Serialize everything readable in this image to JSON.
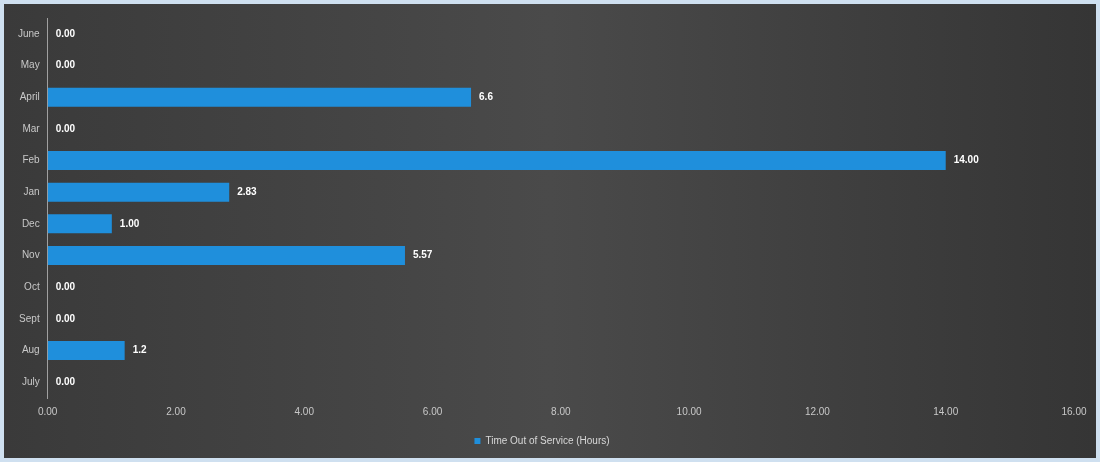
{
  "chart_data": {
    "type": "bar",
    "orientation": "horizontal",
    "categories": [
      "June",
      "May",
      "April",
      "Mar",
      "Feb",
      "Jan",
      "Dec",
      "Nov",
      "Oct",
      "Sept",
      "Aug",
      "July"
    ],
    "series": [
      {
        "name": "Time Out of Service (Hours)",
        "color": "#1f8fdc",
        "values": [
          0,
          0,
          6.6,
          0,
          14,
          2.83,
          1,
          5.57,
          0,
          0,
          1.2,
          0
        ],
        "value_labels": [
          "0.00",
          "0.00",
          "6.6",
          "0.00",
          "14.00",
          "2.83",
          "1.00",
          "5.57",
          "0.00",
          "0.00",
          "1.2",
          "0.00"
        ]
      }
    ],
    "xlim": [
      0,
      16
    ],
    "xticks": [
      {
        "value": 0,
        "label": "0.00"
      },
      {
        "value": 2,
        "label": "2.00"
      },
      {
        "value": 4,
        "label": "4.00"
      },
      {
        "value": 6,
        "label": "6.00"
      },
      {
        "value": 8,
        "label": "8.00"
      },
      {
        "value": 10,
        "label": "10.00"
      },
      {
        "value": 12,
        "label": "12.00"
      },
      {
        "value": 14,
        "label": "14.00"
      },
      {
        "value": 16,
        "label": "16.00"
      }
    ],
    "grid": false,
    "legend": "bottom"
  }
}
